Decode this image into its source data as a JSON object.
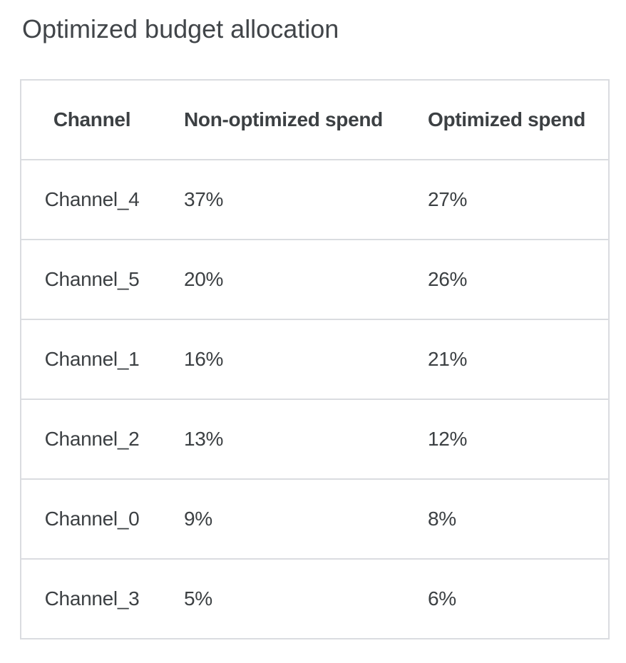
{
  "page_title": "Optimized budget allocation",
  "table": {
    "columns": [
      {
        "id": "channel",
        "label": "Channel"
      },
      {
        "id": "non_optimized",
        "label": "Non-optimized spend"
      },
      {
        "id": "optimized",
        "label": "Optimized spend"
      }
    ],
    "rows": [
      {
        "channel": "Channel_4",
        "non_optimized": "37%",
        "optimized": "27%"
      },
      {
        "channel": "Channel_5",
        "non_optimized": "20%",
        "optimized": "26%"
      },
      {
        "channel": "Channel_1",
        "non_optimized": "16%",
        "optimized": "21%"
      },
      {
        "channel": "Channel_2",
        "non_optimized": "13%",
        "optimized": "12%"
      },
      {
        "channel": "Channel_0",
        "non_optimized": "9%",
        "optimized": "8%"
      },
      {
        "channel": "Channel_3",
        "non_optimized": "5%",
        "optimized": "6%"
      }
    ]
  },
  "chart_data": {
    "type": "table",
    "title": "Optimized budget allocation",
    "columns": [
      "Channel",
      "Non-optimized spend",
      "Optimized spend"
    ],
    "rows": [
      [
        "Channel_4",
        "37%",
        "27%"
      ],
      [
        "Channel_5",
        "20%",
        "26%"
      ],
      [
        "Channel_1",
        "16%",
        "21%"
      ],
      [
        "Channel_2",
        "13%",
        "12%"
      ],
      [
        "Channel_0",
        "9%",
        "8%"
      ],
      [
        "Channel_3",
        "5%",
        "6%"
      ]
    ],
    "non_optimized_spend_pct": {
      "Channel_4": 37,
      "Channel_5": 20,
      "Channel_1": 16,
      "Channel_2": 13,
      "Channel_0": 9,
      "Channel_3": 5
    },
    "optimized_spend_pct": {
      "Channel_4": 27,
      "Channel_5": 26,
      "Channel_1": 21,
      "Channel_2": 12,
      "Channel_0": 8,
      "Channel_3": 6
    }
  },
  "colors": {
    "text": "#3c4043",
    "title_text": "#414549",
    "border": "#dadce0",
    "background": "#ffffff"
  }
}
